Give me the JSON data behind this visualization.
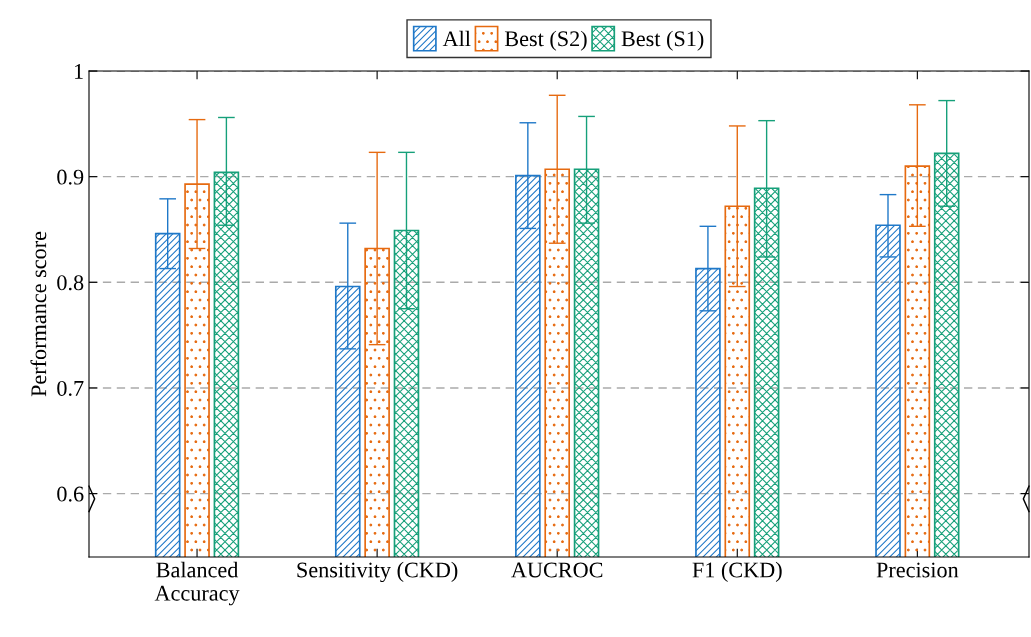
{
  "chart_data": {
    "type": "bar",
    "ylabel": "Performance score",
    "categories": [
      "Balanced\nAccuracy",
      "Sensitivity (CKD)",
      "AUCROC",
      "F1 (CKD)",
      "Precision"
    ],
    "series": [
      {
        "name": "All",
        "color": "#1f78c8",
        "values": [
          0.846,
          0.796,
          0.901,
          0.813,
          0.854
        ],
        "errors": [
          [
            0.813,
            0.879
          ],
          [
            0.737,
            0.856
          ],
          [
            0.851,
            0.951
          ],
          [
            0.773,
            0.853
          ],
          [
            0.824,
            0.883
          ]
        ]
      },
      {
        "name": "Best (S2)",
        "color": "#e66a10",
        "values": [
          0.893,
          0.832,
          0.907,
          0.872,
          0.91
        ],
        "errors": [
          [
            0.832,
            0.954
          ],
          [
            0.741,
            0.923
          ],
          [
            0.837,
            0.977
          ],
          [
            0.796,
            0.948
          ],
          [
            0.853,
            0.968
          ]
        ]
      },
      {
        "name": "Best (S1)",
        "color": "#16a07a",
        "values": [
          0.904,
          0.849,
          0.907,
          0.889,
          0.922
        ],
        "errors": [
          [
            0.854,
            0.956
          ],
          [
            0.775,
            0.923
          ],
          [
            0.856,
            0.957
          ],
          [
            0.824,
            0.953
          ],
          [
            0.872,
            0.972
          ]
        ]
      }
    ],
    "ylim": [
      0.54,
      1
    ],
    "yticks": [
      0.6,
      0.7,
      0.8,
      0.9,
      1
    ],
    "grid": "y",
    "legend": "top"
  }
}
